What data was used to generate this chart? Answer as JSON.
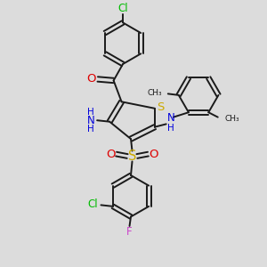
{
  "bg_color": "#dcdcdc",
  "bond_color": "#1a1a1a",
  "s_color": "#ccaa00",
  "n_color": "#0000dd",
  "o_color": "#dd0000",
  "cl_color": "#00bb00",
  "f_color": "#cc44cc",
  "line_width": 1.4,
  "font_size": 8.5,
  "fig_width": 3.0,
  "fig_height": 3.0,
  "dpi": 100,
  "xlim": [
    0,
    10
  ],
  "ylim": [
    0,
    10
  ]
}
